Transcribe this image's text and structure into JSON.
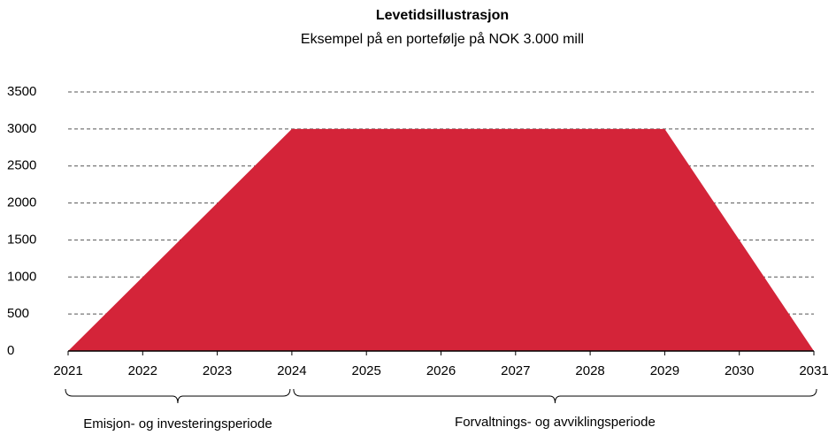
{
  "chart_data": {
    "type": "area",
    "title": "Levetidsillustrasjon",
    "subtitle": "Eksempel på en portefølje på NOK 3.000 mill",
    "x": [
      2021,
      2022,
      2023,
      2024,
      2025,
      2026,
      2027,
      2028,
      2029,
      2030,
      2031
    ],
    "series": [
      {
        "color": "#d42439",
        "values": [
          0,
          1000,
          2000,
          3000,
          3000,
          3000,
          3000,
          3000,
          3000,
          1500,
          0
        ]
      }
    ],
    "xlim": [
      2021,
      2031
    ],
    "xticks": [
      2021,
      2022,
      2023,
      2024,
      2025,
      2026,
      2027,
      2028,
      2029,
      2030,
      2031
    ],
    "ylim": [
      0,
      3500
    ],
    "yticks": [
      0,
      500,
      1000,
      1500,
      2000,
      2500,
      3000,
      3500
    ],
    "grid": true,
    "annotations": [
      "Emisjon- og investeringsperiode",
      "Forvaltnings- og avviklingsperiode"
    ]
  }
}
